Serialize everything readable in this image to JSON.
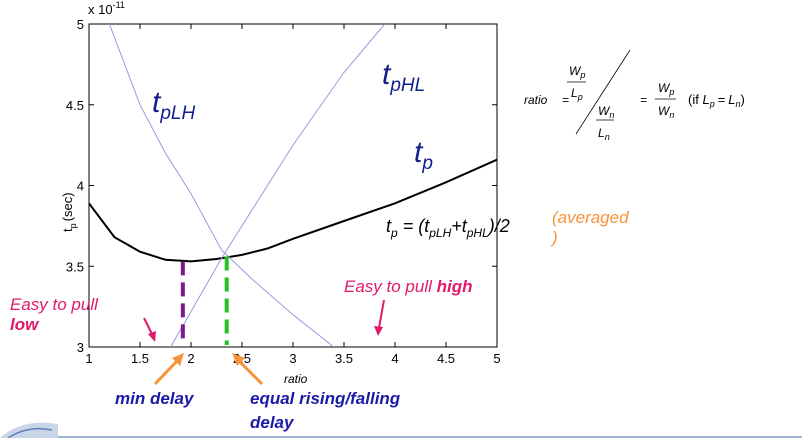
{
  "chart_data": {
    "type": "line",
    "xlabel": "ratio",
    "ylabel": "t",
    "ylabel_sub": "p",
    "ylabel_unit": "(sec)",
    "y_multiplier": "x 10",
    "y_multiplier_exp": "-11",
    "xlim": [
      1,
      5
    ],
    "ylim": [
      3,
      5
    ],
    "x_ticks": [
      "1",
      "1.5",
      "2",
      "2.5",
      "3",
      "3.5",
      "4",
      "4.5",
      "5"
    ],
    "y_ticks": [
      "3",
      "3.5",
      "4",
      "4.5",
      "5"
    ],
    "series": [
      {
        "name": "tp",
        "x": [
          1.0,
          1.25,
          1.5,
          1.75,
          2.0,
          2.25,
          2.5,
          2.75,
          3.0,
          3.5,
          4.0,
          4.5,
          5.0
        ],
        "y": [
          3.89,
          3.68,
          3.59,
          3.54,
          3.53,
          3.545,
          3.57,
          3.61,
          3.67,
          3.78,
          3.89,
          4.02,
          4.16
        ]
      },
      {
        "name": "tpLH",
        "x": [
          1.2,
          1.5,
          1.75,
          2.0,
          2.3,
          2.6,
          3.0,
          3.4
        ],
        "y": [
          5.0,
          4.5,
          4.2,
          3.95,
          3.6,
          3.42,
          3.2,
          3.0
        ]
      },
      {
        "name": "tpHL",
        "x": [
          1.8,
          2.0,
          2.3,
          2.6,
          3.0,
          3.5,
          3.9
        ],
        "y": [
          3.0,
          3.22,
          3.55,
          3.85,
          4.25,
          4.7,
          5.0
        ]
      }
    ],
    "markers": [
      {
        "name": "min-delay",
        "x": 1.92,
        "y_top": 3.53,
        "color": "#7b1a8c"
      },
      {
        "name": "equal-rising-falling",
        "x": 2.35,
        "y_top": 3.56,
        "color": "#22c022"
      }
    ]
  },
  "curve_labels": {
    "tplh_main": "t",
    "tplh_sub": "pLH",
    "tphl_main": "t",
    "tphl_sub": "pHL",
    "tp_main": "t",
    "tp_sub": "p"
  },
  "formula": {
    "lhs_main": "t",
    "lhs_sub": "p",
    "eq_open": " = (t",
    "sub1": "pLH",
    "plus": "+t",
    "sub2": "pHL",
    "close": ")/2",
    "note_line1": "(averaged",
    "note_line2": ")"
  },
  "ratio_formula": {
    "ratio": "ratio",
    "eq": "=",
    "eq2": "=",
    "W": "W",
    "L": "L",
    "sub_p": "p",
    "sub_n": "n",
    "if_open": "(if ",
    "if_close": ")"
  },
  "annotations": {
    "pull_low_line1": "Easy to pull",
    "pull_low_line2": "low",
    "pull_high_prefix": "Easy to pull ",
    "pull_high_bold": "high",
    "min_delay": "min delay",
    "equal_line1": "equal rising/falling",
    "equal_line2": "delay"
  },
  "colors": {
    "accent_pink": "#e0196b",
    "accent_blue": "#1a1aa8",
    "accent_orange": "#f7933a",
    "curve_thin": "#9a9ae0",
    "curve_main": "#000000"
  }
}
